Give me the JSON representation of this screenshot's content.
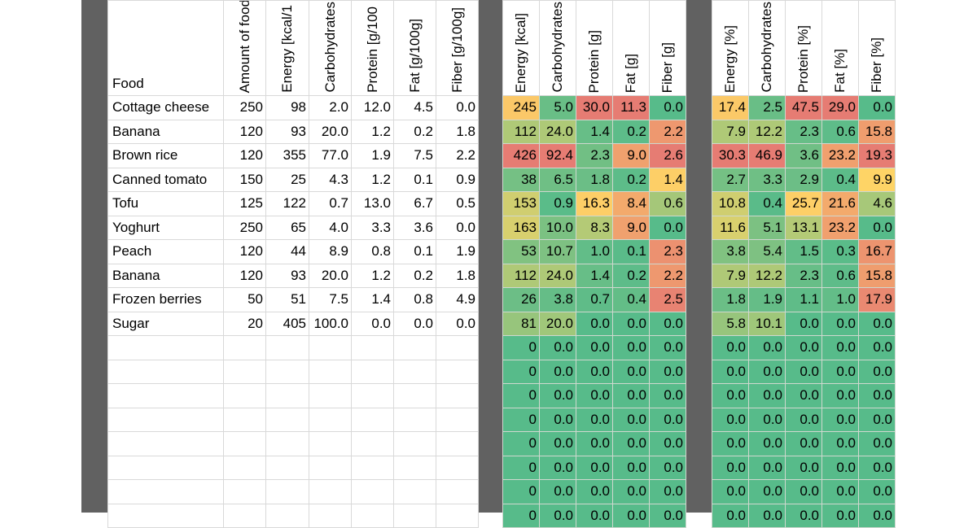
{
  "colors": {
    "divider": "#616161",
    "grid": "#d9d9d9",
    "heat_low": "#57bb8a",
    "heat_mid": "#ffd666",
    "heat_high": "#e67c73"
  },
  "input": {
    "headers": [
      "Food",
      "Amount of food",
      "Energy [kcal/1",
      "Carbohydrates",
      "Protein [g/100",
      "Fat [g/100g]",
      "Fiber [g/100g]"
    ],
    "rows": [
      [
        "Cottage cheese",
        "250",
        "98",
        "2.0",
        "12.0",
        "4.5",
        "0.0"
      ],
      [
        "Banana",
        "120",
        "93",
        "20.0",
        "1.2",
        "0.2",
        "1.8"
      ],
      [
        "Brown rice",
        "120",
        "355",
        "77.0",
        "1.9",
        "7.5",
        "2.2"
      ],
      [
        "Canned tomato",
        "150",
        "25",
        "4.3",
        "1.2",
        "0.1",
        "0.9"
      ],
      [
        "Tofu",
        "125",
        "122",
        "0.7",
        "13.0",
        "6.7",
        "0.5"
      ],
      [
        "Yoghurt",
        "250",
        "65",
        "4.0",
        "3.3",
        "3.6",
        "0.0"
      ],
      [
        "Peach",
        "120",
        "44",
        "8.9",
        "0.8",
        "0.1",
        "1.9"
      ],
      [
        "Banana",
        "120",
        "93",
        "20.0",
        "1.2",
        "0.2",
        "1.8"
      ],
      [
        "Frozen berries",
        "50",
        "51",
        "7.5",
        "1.4",
        "0.8",
        "4.9"
      ],
      [
        "Sugar",
        "20",
        "405",
        "100.0",
        "0.0",
        "0.0",
        "0.0"
      ],
      [
        "",
        "",
        "",
        "",
        "",
        "",
        ""
      ],
      [
        "",
        "",
        "",
        "",
        "",
        "",
        ""
      ],
      [
        "",
        "",
        "",
        "",
        "",
        "",
        ""
      ],
      [
        "",
        "",
        "",
        "",
        "",
        "",
        ""
      ],
      [
        "",
        "",
        "",
        "",
        "",
        "",
        ""
      ],
      [
        "",
        "",
        "",
        "",
        "",
        "",
        ""
      ],
      [
        "",
        "",
        "",
        "",
        "",
        "",
        ""
      ],
      [
        "",
        "",
        "",
        "",
        "",
        "",
        ""
      ]
    ]
  },
  "totals": {
    "headers": [
      "Energy [kcal]",
      "Carbohydrates",
      "Protein [g]",
      "Fat [g]",
      "Fiber [g]"
    ],
    "rows": [
      [
        "245",
        "5.0",
        "30.0",
        "11.3",
        "0.0"
      ],
      [
        "112",
        "24.0",
        "1.4",
        "0.2",
        "2.2"
      ],
      [
        "426",
        "92.4",
        "2.3",
        "9.0",
        "2.6"
      ],
      [
        "38",
        "6.5",
        "1.8",
        "0.2",
        "1.4"
      ],
      [
        "153",
        "0.9",
        "16.3",
        "8.4",
        "0.6"
      ],
      [
        "163",
        "10.0",
        "8.3",
        "9.0",
        "0.0"
      ],
      [
        "53",
        "10.7",
        "1.0",
        "0.1",
        "2.3"
      ],
      [
        "112",
        "24.0",
        "1.4",
        "0.2",
        "2.2"
      ],
      [
        "26",
        "3.8",
        "0.7",
        "0.4",
        "2.5"
      ],
      [
        "81",
        "20.0",
        "0.0",
        "0.0",
        "0.0"
      ],
      [
        "0",
        "0.0",
        "0.0",
        "0.0",
        "0.0"
      ],
      [
        "0",
        "0.0",
        "0.0",
        "0.0",
        "0.0"
      ],
      [
        "0",
        "0.0",
        "0.0",
        "0.0",
        "0.0"
      ],
      [
        "0",
        "0.0",
        "0.0",
        "0.0",
        "0.0"
      ],
      [
        "0",
        "0.0",
        "0.0",
        "0.0",
        "0.0"
      ],
      [
        "0",
        "0.0",
        "0.0",
        "0.0",
        "0.0"
      ],
      [
        "0",
        "0.0",
        "0.0",
        "0.0",
        "0.0"
      ],
      [
        "0",
        "0.0",
        "0.0",
        "0.0",
        "0.0"
      ]
    ]
  },
  "percent": {
    "headers": [
      "Energy [%]",
      "Carbohydrates",
      "Protein [%]",
      "Fat [%]",
      "Fiber [%]"
    ],
    "rows": [
      [
        "17.4",
        "2.5",
        "47.5",
        "29.0",
        "0.0"
      ],
      [
        "7.9",
        "12.2",
        "2.3",
        "0.6",
        "15.8"
      ],
      [
        "30.3",
        "46.9",
        "3.6",
        "23.2",
        "19.3"
      ],
      [
        "2.7",
        "3.3",
        "2.9",
        "0.4",
        "9.9"
      ],
      [
        "10.8",
        "0.4",
        "25.7",
        "21.6",
        "4.6"
      ],
      [
        "11.6",
        "5.1",
        "13.1",
        "23.2",
        "0.0"
      ],
      [
        "3.8",
        "5.4",
        "1.5",
        "0.3",
        "16.7"
      ],
      [
        "7.9",
        "12.2",
        "2.3",
        "0.6",
        "15.8"
      ],
      [
        "1.8",
        "1.9",
        "1.1",
        "1.0",
        "17.9"
      ],
      [
        "5.8",
        "10.1",
        "0.0",
        "0.0",
        "0.0"
      ],
      [
        "0.0",
        "0.0",
        "0.0",
        "0.0",
        "0.0"
      ],
      [
        "0.0",
        "0.0",
        "0.0",
        "0.0",
        "0.0"
      ],
      [
        "0.0",
        "0.0",
        "0.0",
        "0.0",
        "0.0"
      ],
      [
        "0.0",
        "0.0",
        "0.0",
        "0.0",
        "0.0"
      ],
      [
        "0.0",
        "0.0",
        "0.0",
        "0.0",
        "0.0"
      ],
      [
        "0.0",
        "0.0",
        "0.0",
        "0.0",
        "0.0"
      ],
      [
        "0.0",
        "0.0",
        "0.0",
        "0.0",
        "0.0"
      ],
      [
        "0.0",
        "0.0",
        "0.0",
        "0.0",
        "0.0"
      ]
    ]
  }
}
